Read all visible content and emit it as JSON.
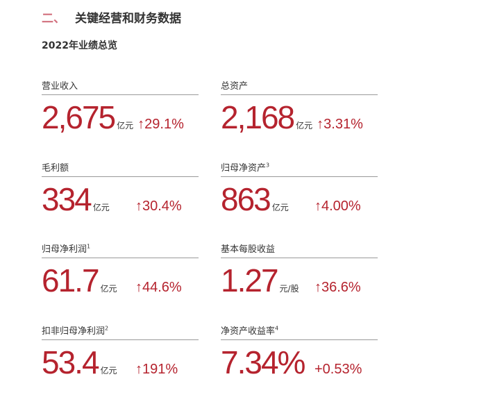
{
  "section": {
    "number": "二、",
    "title": "关键经营和财务数据"
  },
  "subtitle": "2022年业绩总览",
  "metrics": [
    {
      "label": "营业收入",
      "sup": "",
      "value": "2,675",
      "unit": "亿元",
      "change": "↑29.1%"
    },
    {
      "label": "总资产",
      "sup": "",
      "value": "2,168",
      "unit": "亿元",
      "change": "↑3.31%"
    },
    {
      "label": "毛利额",
      "sup": "",
      "value": "334",
      "unit": "亿元",
      "change": "↑30.4%"
    },
    {
      "label": "归母净资产",
      "sup": "3",
      "value": "863",
      "unit": "亿元",
      "change": "↑4.00%"
    },
    {
      "label": "归母净利润",
      "sup": "1",
      "value": "61.7",
      "unit": "亿元",
      "change": "↑44.6%"
    },
    {
      "label": "基本每股收益",
      "sup": "",
      "value": "1.27",
      "unit": "元/股",
      "change": "↑36.6%"
    },
    {
      "label": "扣非归母净利润",
      "sup": "2",
      "value": "53.4",
      "unit": "亿元",
      "change": "↑191%"
    },
    {
      "label": "净资产收益率",
      "sup": "4",
      "value": "7.34%",
      "unit": "",
      "change": "+0.53%"
    }
  ],
  "colors": {
    "accent": "#b5232e",
    "section_number": "#d2707e"
  }
}
